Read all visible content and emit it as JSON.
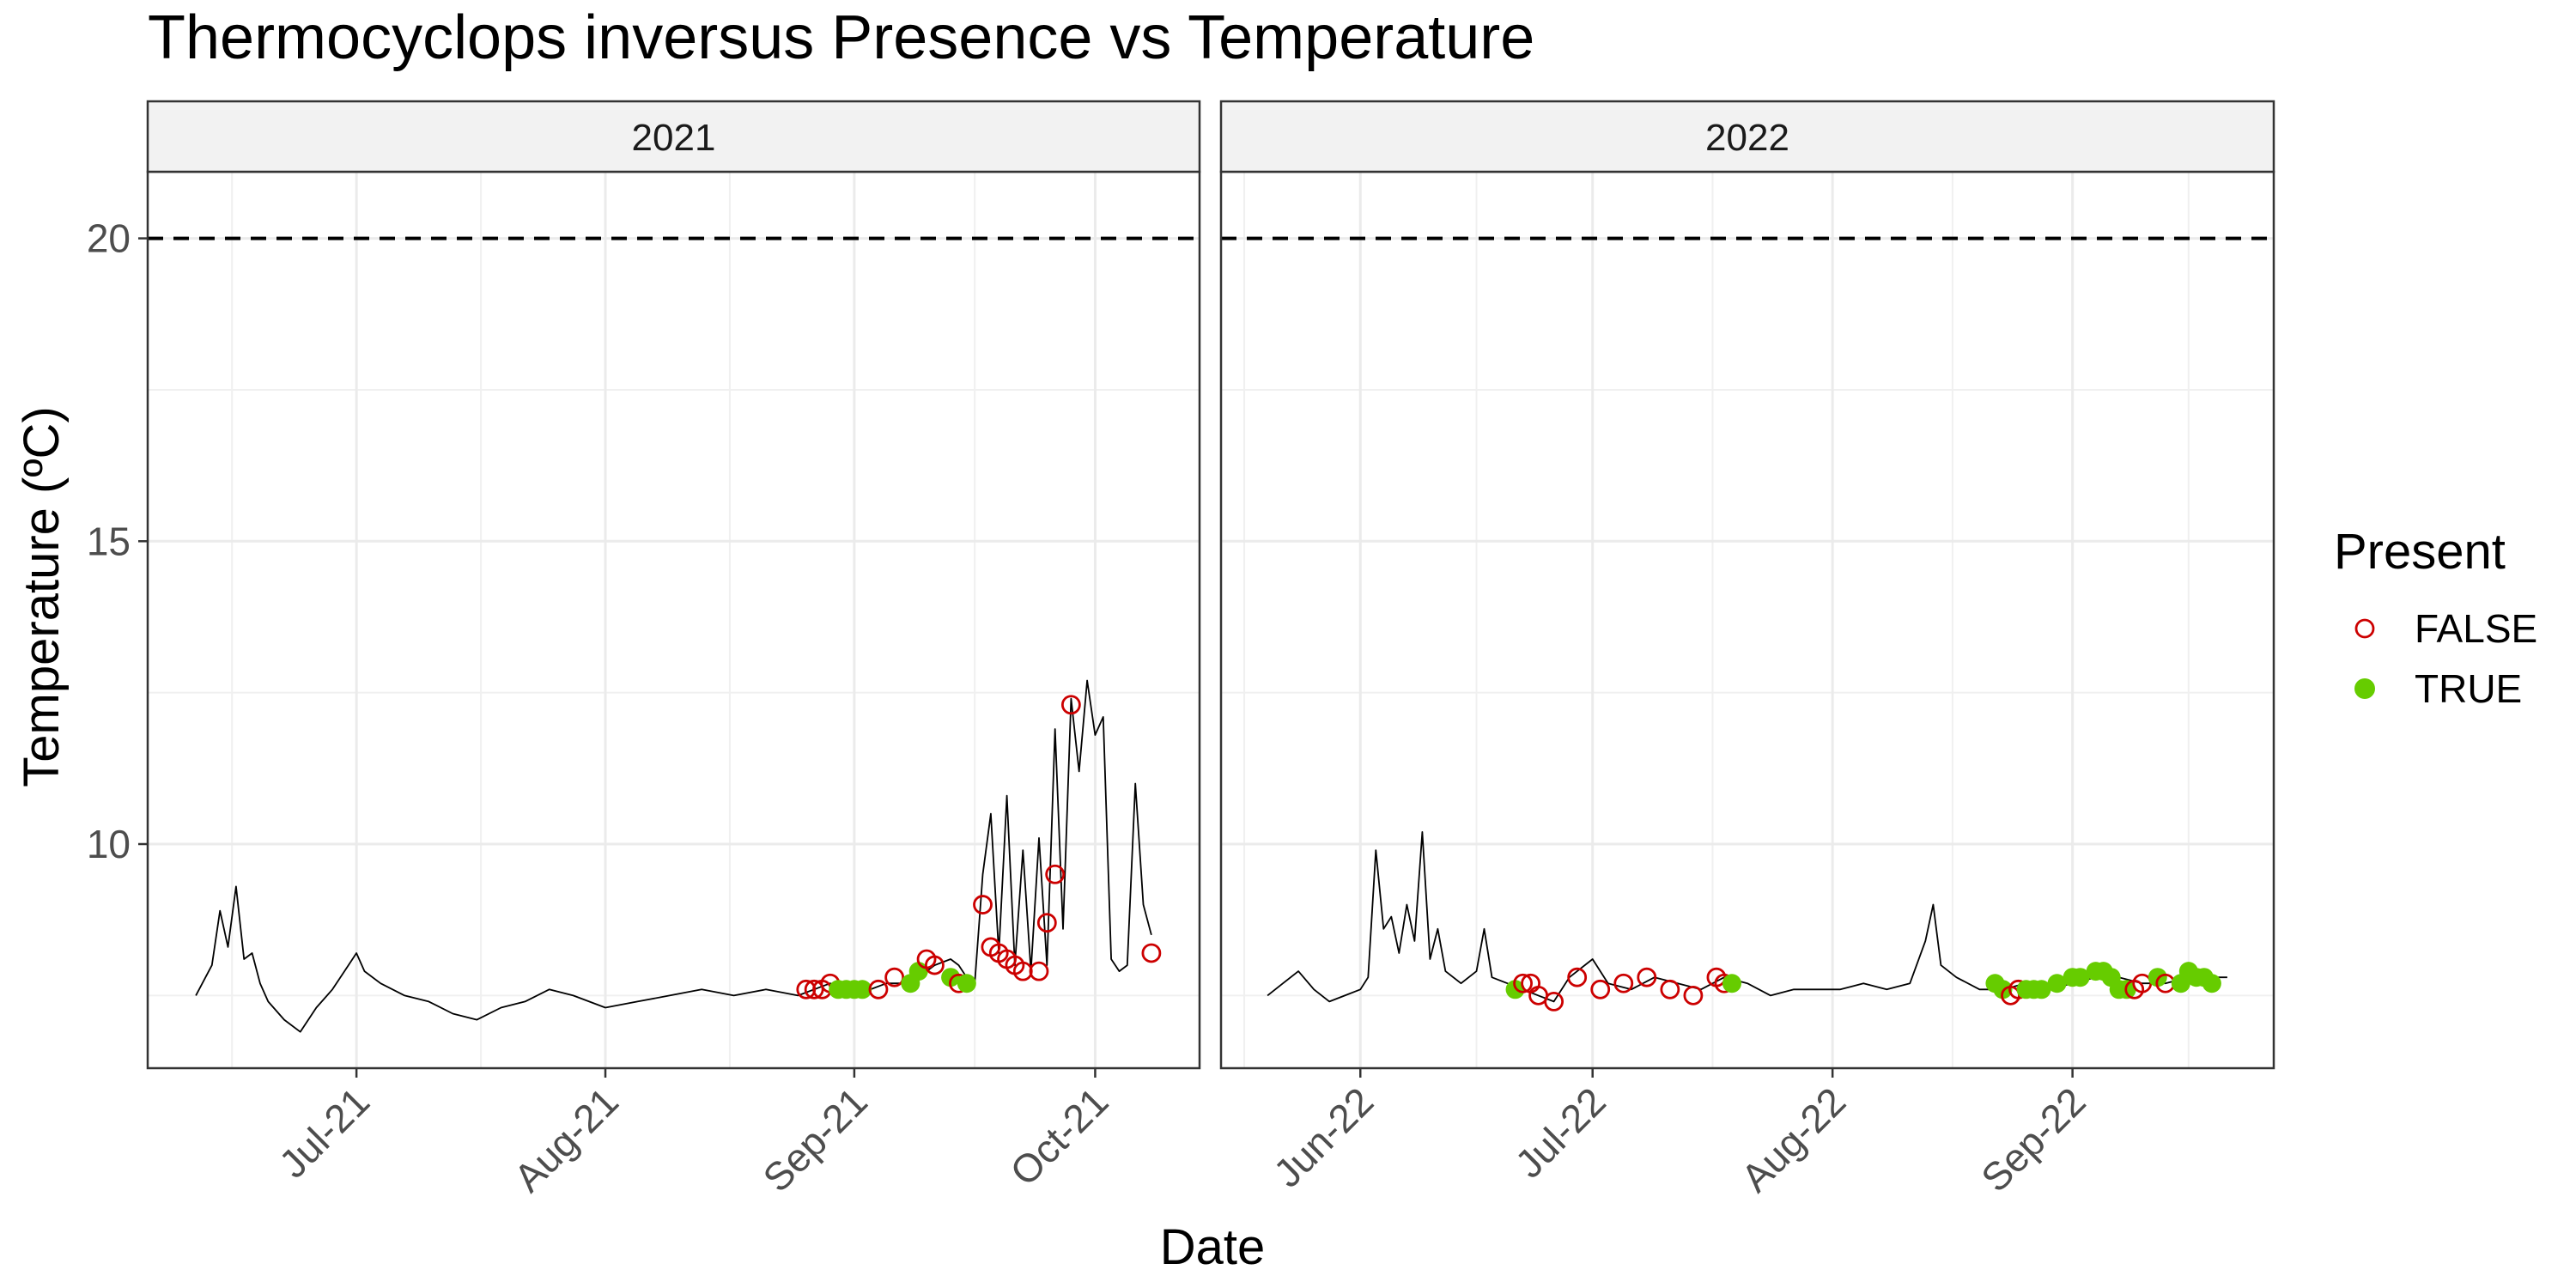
{
  "chart_data": {
    "type": "scatter",
    "title": "Thermocyclops inversus Presence vs Temperature",
    "xlabel": "Date",
    "ylabel": "Temperature (ºC)",
    "ylim": [
      6.3,
      21.1
    ],
    "yticks": [
      10,
      15,
      20
    ],
    "threshold": 20,
    "grid": true,
    "legend": {
      "title": "Present",
      "position": "right",
      "entries": [
        {
          "label": "FALSE",
          "color": "#cc0000",
          "shape": "open-circle"
        },
        {
          "label": "TRUE",
          "color": "#66cc00",
          "shape": "filled-circle"
        }
      ]
    },
    "panels": [
      {
        "strip": "2021",
        "xlim": [
          "2021-06-05",
          "2021-10-14"
        ],
        "xticks": [
          {
            "date": "2021-07-01",
            "label": "Jul-21"
          },
          {
            "date": "2021-08-01",
            "label": "Aug-21"
          },
          {
            "date": "2021-09-01",
            "label": "Sep-21"
          },
          {
            "date": "2021-10-01",
            "label": "Oct-21"
          }
        ],
        "line": [
          [
            "2021-06-11",
            7.5
          ],
          [
            "2021-06-13",
            8.0
          ],
          [
            "2021-06-14",
            8.9
          ],
          [
            "2021-06-15",
            8.3
          ],
          [
            "2021-06-16",
            9.3
          ],
          [
            "2021-06-17",
            8.1
          ],
          [
            "2021-06-18",
            8.2
          ],
          [
            "2021-06-19",
            7.7
          ],
          [
            "2021-06-20",
            7.4
          ],
          [
            "2021-06-22",
            7.1
          ],
          [
            "2021-06-24",
            6.9
          ],
          [
            "2021-06-26",
            7.3
          ],
          [
            "2021-06-28",
            7.6
          ],
          [
            "2021-06-30",
            8.0
          ],
          [
            "2021-07-01",
            8.2
          ],
          [
            "2021-07-02",
            7.9
          ],
          [
            "2021-07-04",
            7.7
          ],
          [
            "2021-07-07",
            7.5
          ],
          [
            "2021-07-10",
            7.4
          ],
          [
            "2021-07-13",
            7.2
          ],
          [
            "2021-07-16",
            7.1
          ],
          [
            "2021-07-19",
            7.3
          ],
          [
            "2021-07-22",
            7.4
          ],
          [
            "2021-07-25",
            7.6
          ],
          [
            "2021-07-28",
            7.5
          ],
          [
            "2021-08-01",
            7.3
          ],
          [
            "2021-08-05",
            7.4
          ],
          [
            "2021-08-09",
            7.5
          ],
          [
            "2021-08-13",
            7.6
          ],
          [
            "2021-08-17",
            7.5
          ],
          [
            "2021-08-21",
            7.6
          ],
          [
            "2021-08-25",
            7.5
          ],
          [
            "2021-08-29",
            7.7
          ],
          [
            "2021-09-01",
            7.6
          ],
          [
            "2021-09-03",
            7.6
          ],
          [
            "2021-09-05",
            7.7
          ],
          [
            "2021-09-07",
            7.7
          ],
          [
            "2021-09-09",
            7.8
          ],
          [
            "2021-09-11",
            8.0
          ],
          [
            "2021-09-13",
            8.1
          ],
          [
            "2021-09-14",
            8.0
          ],
          [
            "2021-09-15",
            7.8
          ],
          [
            "2021-09-16",
            7.7
          ],
          [
            "2021-09-17",
            9.5
          ],
          [
            "2021-09-18",
            10.5
          ],
          [
            "2021-09-19",
            8.2
          ],
          [
            "2021-09-20",
            10.8
          ],
          [
            "2021-09-21",
            8.0
          ],
          [
            "2021-09-22",
            9.9
          ],
          [
            "2021-09-23",
            7.9
          ],
          [
            "2021-09-24",
            10.1
          ],
          [
            "2021-09-25",
            8.0
          ],
          [
            "2021-09-26",
            11.9
          ],
          [
            "2021-09-27",
            8.6
          ],
          [
            "2021-09-28",
            12.4
          ],
          [
            "2021-09-29",
            11.2
          ],
          [
            "2021-09-30",
            12.7
          ],
          [
            "2021-10-01",
            11.8
          ],
          [
            "2021-10-02",
            12.1
          ],
          [
            "2021-10-03",
            8.1
          ],
          [
            "2021-10-04",
            7.9
          ],
          [
            "2021-10-05",
            8.0
          ],
          [
            "2021-10-06",
            11.0
          ],
          [
            "2021-10-07",
            9.0
          ],
          [
            "2021-10-08",
            8.5
          ]
        ],
        "points": [
          [
            "2021-08-26",
            7.6,
            false
          ],
          [
            "2021-08-27",
            7.6,
            false
          ],
          [
            "2021-08-28",
            7.6,
            false
          ],
          [
            "2021-08-29",
            7.7,
            false
          ],
          [
            "2021-08-30",
            7.6,
            true
          ],
          [
            "2021-08-31",
            7.6,
            true
          ],
          [
            "2021-09-01",
            7.6,
            true
          ],
          [
            "2021-09-02",
            7.6,
            true
          ],
          [
            "2021-09-04",
            7.6,
            false
          ],
          [
            "2021-09-06",
            7.8,
            false
          ],
          [
            "2021-09-08",
            7.7,
            true
          ],
          [
            "2021-09-09",
            7.9,
            true
          ],
          [
            "2021-09-10",
            8.1,
            false
          ],
          [
            "2021-09-11",
            8.0,
            false
          ],
          [
            "2021-09-13",
            7.8,
            true
          ],
          [
            "2021-09-14",
            7.7,
            false
          ],
          [
            "2021-09-15",
            7.7,
            true
          ],
          [
            "2021-09-17",
            9.0,
            false
          ],
          [
            "2021-09-18",
            8.3,
            false
          ],
          [
            "2021-09-19",
            8.2,
            false
          ],
          [
            "2021-09-20",
            8.1,
            false
          ],
          [
            "2021-09-21",
            8.0,
            false
          ],
          [
            "2021-09-22",
            7.9,
            false
          ],
          [
            "2021-09-24",
            7.9,
            false
          ],
          [
            "2021-09-25",
            8.7,
            false
          ],
          [
            "2021-09-26",
            9.5,
            false
          ],
          [
            "2021-09-28",
            12.3,
            false
          ],
          [
            "2021-10-08",
            8.2,
            false
          ]
        ]
      },
      {
        "strip": "2022",
        "xlim": [
          "2022-05-14",
          "2022-09-27"
        ],
        "xticks": [
          {
            "date": "2022-06-01",
            "label": "Jun-22"
          },
          {
            "date": "2022-07-01",
            "label": "Jul-22"
          },
          {
            "date": "2022-08-01",
            "label": "Aug-22"
          },
          {
            "date": "2022-09-01",
            "label": "Sep-22"
          }
        ],
        "line": [
          [
            "2022-05-20",
            7.5
          ],
          [
            "2022-05-22",
            7.7
          ],
          [
            "2022-05-24",
            7.9
          ],
          [
            "2022-05-26",
            7.6
          ],
          [
            "2022-05-28",
            7.4
          ],
          [
            "2022-05-30",
            7.5
          ],
          [
            "2022-06-01",
            7.6
          ],
          [
            "2022-06-02",
            7.8
          ],
          [
            "2022-06-03",
            9.9
          ],
          [
            "2022-06-04",
            8.6
          ],
          [
            "2022-06-05",
            8.8
          ],
          [
            "2022-06-06",
            8.2
          ],
          [
            "2022-06-07",
            9.0
          ],
          [
            "2022-06-08",
            8.4
          ],
          [
            "2022-06-09",
            10.2
          ],
          [
            "2022-06-10",
            8.1
          ],
          [
            "2022-06-11",
            8.6
          ],
          [
            "2022-06-12",
            7.9
          ],
          [
            "2022-06-14",
            7.7
          ],
          [
            "2022-06-16",
            7.9
          ],
          [
            "2022-06-17",
            8.6
          ],
          [
            "2022-06-18",
            7.8
          ],
          [
            "2022-06-20",
            7.7
          ],
          [
            "2022-06-22",
            7.6
          ],
          [
            "2022-06-24",
            7.5
          ],
          [
            "2022-06-26",
            7.4
          ],
          [
            "2022-06-28",
            7.8
          ],
          [
            "2022-07-01",
            8.1
          ],
          [
            "2022-07-03",
            7.7
          ],
          [
            "2022-07-06",
            7.6
          ],
          [
            "2022-07-09",
            7.8
          ],
          [
            "2022-07-12",
            7.7
          ],
          [
            "2022-07-15",
            7.6
          ],
          [
            "2022-07-18",
            7.8
          ],
          [
            "2022-07-21",
            7.7
          ],
          [
            "2022-07-24",
            7.5
          ],
          [
            "2022-07-27",
            7.6
          ],
          [
            "2022-07-30",
            7.6
          ],
          [
            "2022-08-02",
            7.6
          ],
          [
            "2022-08-05",
            7.7
          ],
          [
            "2022-08-08",
            7.6
          ],
          [
            "2022-08-11",
            7.7
          ],
          [
            "2022-08-13",
            8.4
          ],
          [
            "2022-08-14",
            9.0
          ],
          [
            "2022-08-15",
            8.0
          ],
          [
            "2022-08-17",
            7.8
          ],
          [
            "2022-08-20",
            7.6
          ],
          [
            "2022-08-23",
            7.6
          ],
          [
            "2022-08-26",
            7.7
          ],
          [
            "2022-08-29",
            7.6
          ],
          [
            "2022-09-01",
            7.7
          ],
          [
            "2022-09-04",
            7.8
          ],
          [
            "2022-09-07",
            7.8
          ],
          [
            "2022-09-10",
            7.7
          ],
          [
            "2022-09-13",
            7.7
          ],
          [
            "2022-09-16",
            7.8
          ],
          [
            "2022-09-19",
            7.8
          ],
          [
            "2022-09-21",
            7.8
          ]
        ],
        "points": [
          [
            "2022-06-21",
            7.6,
            true
          ],
          [
            "2022-06-22",
            7.7,
            false
          ],
          [
            "2022-06-23",
            7.7,
            false
          ],
          [
            "2022-06-24",
            7.5,
            false
          ],
          [
            "2022-06-26",
            7.4,
            false
          ],
          [
            "2022-06-29",
            7.8,
            false
          ],
          [
            "2022-07-02",
            7.6,
            false
          ],
          [
            "2022-07-05",
            7.7,
            false
          ],
          [
            "2022-07-08",
            7.8,
            false
          ],
          [
            "2022-07-11",
            7.6,
            false
          ],
          [
            "2022-07-14",
            7.5,
            false
          ],
          [
            "2022-07-17",
            7.8,
            false
          ],
          [
            "2022-07-18",
            7.7,
            false
          ],
          [
            "2022-07-19",
            7.7,
            true
          ],
          [
            "2022-08-22",
            7.7,
            true
          ],
          [
            "2022-08-23",
            7.6,
            true
          ],
          [
            "2022-08-24",
            7.5,
            false
          ],
          [
            "2022-08-25",
            7.6,
            false
          ],
          [
            "2022-08-26",
            7.6,
            true
          ],
          [
            "2022-08-27",
            7.6,
            true
          ],
          [
            "2022-08-28",
            7.6,
            true
          ],
          [
            "2022-08-30",
            7.7,
            true
          ],
          [
            "2022-09-01",
            7.8,
            true
          ],
          [
            "2022-09-02",
            7.8,
            true
          ],
          [
            "2022-09-04",
            7.9,
            true
          ],
          [
            "2022-09-05",
            7.9,
            true
          ],
          [
            "2022-09-06",
            7.8,
            true
          ],
          [
            "2022-09-07",
            7.6,
            true
          ],
          [
            "2022-09-08",
            7.6,
            true
          ],
          [
            "2022-09-09",
            7.6,
            false
          ],
          [
            "2022-09-10",
            7.7,
            false
          ],
          [
            "2022-09-12",
            7.8,
            true
          ],
          [
            "2022-09-13",
            7.7,
            false
          ],
          [
            "2022-09-15",
            7.7,
            true
          ],
          [
            "2022-09-16",
            7.9,
            true
          ],
          [
            "2022-09-17",
            7.8,
            true
          ],
          [
            "2022-09-18",
            7.8,
            true
          ],
          [
            "2022-09-19",
            7.7,
            true
          ]
        ]
      }
    ]
  }
}
